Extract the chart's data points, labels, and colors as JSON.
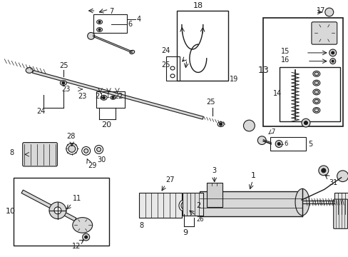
{
  "bg_color": "#ffffff",
  "line_color": "#1a1a1a",
  "fig_width": 4.89,
  "fig_height": 3.6,
  "dpi": 100,
  "gray_fill": "#d8d8d8",
  "dark_fill": "#888888"
}
